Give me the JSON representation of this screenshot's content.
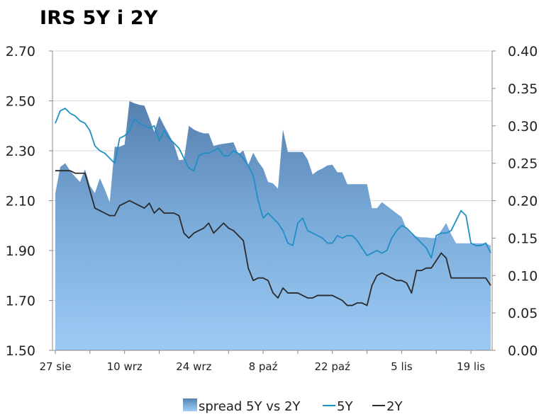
{
  "chart_data": {
    "type": "area+line",
    "title": "IRS 5Y i 2Y",
    "x_tick_labels": [
      "27 sie",
      "10 wrz",
      "24 wrz",
      "8 paź",
      "22 paź",
      "5 lis",
      "19 lis"
    ],
    "left_axis": {
      "ylim": [
        1.5,
        2.7
      ],
      "ticks": [
        "1.50",
        "1.70",
        "1.90",
        "2.10",
        "2.30",
        "2.50",
        "2.70"
      ]
    },
    "right_axis": {
      "ylim": [
        0.0,
        0.4
      ],
      "ticks": [
        "0.00",
        "0.05",
        "0.10",
        "0.15",
        "0.20",
        "0.25",
        "0.30",
        "0.35",
        "0.40"
      ]
    },
    "grid": "horizontal",
    "legend_position": "bottom",
    "x_days": [
      0,
      1,
      2,
      3,
      4,
      5,
      6,
      7,
      8,
      9,
      10,
      11,
      12,
      13,
      14,
      15,
      16,
      17,
      18,
      19,
      20,
      21,
      22,
      23,
      24,
      25,
      26,
      27,
      28,
      29,
      30,
      31,
      32,
      33,
      34,
      35,
      36,
      37,
      38,
      39,
      40,
      41,
      42,
      43,
      44,
      45,
      46,
      47,
      48,
      49,
      50,
      51,
      52,
      53,
      54,
      55,
      56,
      57,
      58,
      59,
      60,
      61,
      62,
      63,
      64,
      65,
      66,
      67,
      68,
      69,
      70,
      71,
      72,
      73,
      74,
      75,
      76,
      77,
      78,
      79,
      80,
      81,
      82,
      83,
      84,
      85,
      86,
      87,
      88
    ],
    "series": [
      {
        "name": "spread 5Y vs 2Y",
        "axis": "right",
        "kind": "area",
        "color": "#5f8fbd",
        "values": [
          0.21,
          0.245,
          0.25,
          0.24,
          0.232,
          0.225,
          0.242,
          0.22,
          0.21,
          0.23,
          0.215,
          0.198,
          0.272,
          0.272,
          0.275,
          0.333,
          0.33,
          0.328,
          0.327,
          0.31,
          0.292,
          0.313,
          0.3,
          0.288,
          0.275,
          0.254,
          0.255,
          0.3,
          0.295,
          0.292,
          0.29,
          0.29,
          0.273,
          0.275,
          0.276,
          0.277,
          0.278,
          0.262,
          0.267,
          0.248,
          0.264,
          0.252,
          0.243,
          0.225,
          0.223,
          0.216,
          0.295,
          0.265,
          0.265,
          0.265,
          0.265,
          0.255,
          0.235,
          0.24,
          0.243,
          0.247,
          0.248,
          0.238,
          0.238,
          0.222,
          0.222,
          0.222,
          0.222,
          0.222,
          0.19,
          0.19,
          0.198,
          0.193,
          0.188,
          0.183,
          0.178,
          0.162,
          0.155,
          0.152,
          0.151,
          0.151,
          0.15,
          0.15,
          0.16,
          0.17,
          0.155,
          0.143,
          0.143,
          0.143,
          0.143,
          0.143,
          0.143,
          0.143,
          0.14
        ]
      },
      {
        "name": "5Y",
        "axis": "left",
        "kind": "line",
        "color": "#1f8fc4",
        "values": [
          2.41,
          2.46,
          2.47,
          2.45,
          2.44,
          2.42,
          2.41,
          2.38,
          2.32,
          2.3,
          2.29,
          2.27,
          2.25,
          2.35,
          2.36,
          2.38,
          2.43,
          2.41,
          2.4,
          2.39,
          2.4,
          2.34,
          2.38,
          2.35,
          2.33,
          2.31,
          2.27,
          2.23,
          2.22,
          2.28,
          2.29,
          2.29,
          2.3,
          2.31,
          2.28,
          2.28,
          2.3,
          2.29,
          2.27,
          2.24,
          2.2,
          2.1,
          2.03,
          2.05,
          2.03,
          2.01,
          1.98,
          1.93,
          1.92,
          2.01,
          2.03,
          1.98,
          1.97,
          1.96,
          1.95,
          1.93,
          1.93,
          1.96,
          1.95,
          1.96,
          1.96,
          1.94,
          1.91,
          1.88,
          1.89,
          1.9,
          1.89,
          1.9,
          1.95,
          1.98,
          2.0,
          1.99,
          1.97,
          1.95,
          1.93,
          1.91,
          1.87,
          1.96,
          1.97,
          1.97,
          1.98,
          2.02,
          2.06,
          2.04,
          1.93,
          1.92,
          1.92,
          1.93,
          1.89
        ]
      },
      {
        "name": "2Y",
        "axis": "left",
        "kind": "line",
        "color": "#2b2b2b",
        "values": [
          2.22,
          2.22,
          2.22,
          2.22,
          2.21,
          2.21,
          2.21,
          2.14,
          2.07,
          2.06,
          2.05,
          2.04,
          2.04,
          2.08,
          2.09,
          2.1,
          2.09,
          2.08,
          2.07,
          2.09,
          2.05,
          2.07,
          2.05,
          2.05,
          2.05,
          2.04,
          1.97,
          1.95,
          1.97,
          1.98,
          1.99,
          2.01,
          1.97,
          1.99,
          2.01,
          1.99,
          1.98,
          1.96,
          1.94,
          1.83,
          1.78,
          1.79,
          1.79,
          1.78,
          1.73,
          1.71,
          1.75,
          1.73,
          1.73,
          1.73,
          1.72,
          1.71,
          1.71,
          1.72,
          1.72,
          1.72,
          1.72,
          1.71,
          1.7,
          1.68,
          1.68,
          1.69,
          1.69,
          1.68,
          1.76,
          1.8,
          1.81,
          1.8,
          1.79,
          1.78,
          1.78,
          1.77,
          1.73,
          1.82,
          1.82,
          1.83,
          1.83,
          1.86,
          1.89,
          1.87,
          1.79,
          1.79,
          1.79,
          1.79,
          1.79,
          1.79,
          1.79,
          1.79,
          1.76
        ]
      }
    ]
  }
}
